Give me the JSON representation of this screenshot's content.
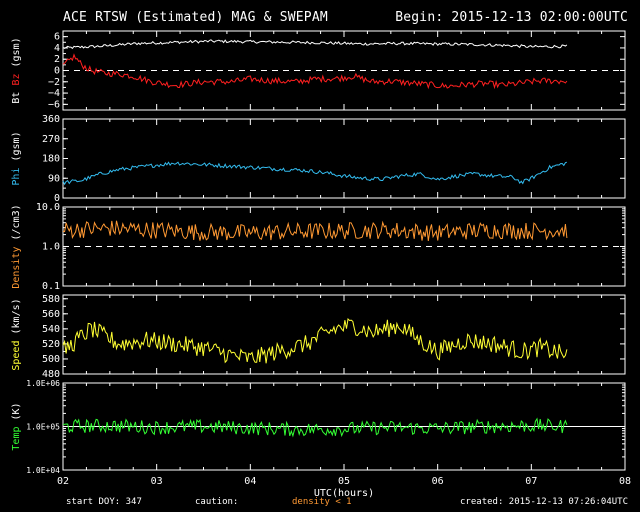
{
  "header": {
    "title": "ACE RTSW (Estimated) MAG & SWEPAM",
    "begin": "Begin: 2015-12-13 02:00:00UTC"
  },
  "footer": {
    "start_doy": "start DOY: 347",
    "caution": "caution:",
    "density_note": "density < 1",
    "created": "created: 2015-12-13 07:26:04UTC"
  },
  "colors": {
    "background": "#000000",
    "axes": "#ffffff",
    "bt": "#ffffff",
    "bz": "#ff2020",
    "phi": "#33bbee",
    "density": "#ff9933",
    "speed": "#ffff33",
    "temp": "#33ff33",
    "caution_text": "#ff9933"
  },
  "chart_data": {
    "type": "line",
    "x_axis": {
      "label": "UTC(hours)",
      "range": [
        2,
        8
      ],
      "tick_labels": [
        "02",
        "03",
        "04",
        "05",
        "06",
        "07",
        "08"
      ],
      "data_end": 7.38
    },
    "panels": [
      {
        "id": "mag",
        "ylabel_parts": [
          {
            "text": "Bt",
            "color": "#ffffff"
          },
          {
            "text": " Bz",
            "color": "#ff2020"
          },
          {
            "text": " (gsm)",
            "color": "#ffffff"
          }
        ],
        "scale": "linear",
        "ylim": [
          -7,
          7
        ],
        "tick_values": [
          -6,
          -4,
          -2,
          0,
          2,
          4,
          6
        ],
        "tick_labels": [
          "−6",
          "−4",
          "−2",
          "0",
          "2",
          "4",
          "6"
        ],
        "reference_line": 0,
        "reference_style": "dashed",
        "series": [
          {
            "name": "Bt",
            "color": "#ffffff",
            "keyframes": [
              [
                2.0,
                4.0
              ],
              [
                2.4,
                4.3
              ],
              [
                2.8,
                4.8
              ],
              [
                3.2,
                5.0
              ],
              [
                3.6,
                5.2
              ],
              [
                4.0,
                5.1
              ],
              [
                4.4,
                5.0
              ],
              [
                4.8,
                4.9
              ],
              [
                5.2,
                4.7
              ],
              [
                5.6,
                4.8
              ],
              [
                6.0,
                4.7
              ],
              [
                6.4,
                4.6
              ],
              [
                6.8,
                4.4
              ],
              [
                7.0,
                4.2
              ],
              [
                7.38,
                4.3
              ]
            ],
            "noise": 0.25
          },
          {
            "name": "Bz",
            "color": "#ff2020",
            "keyframes": [
              [
                2.0,
                0.8
              ],
              [
                2.12,
                2.5
              ],
              [
                2.2,
                1.0
              ],
              [
                2.3,
                0.0
              ],
              [
                2.45,
                -0.5
              ],
              [
                2.6,
                -0.6
              ],
              [
                2.75,
                -1.0
              ],
              [
                2.95,
                -2.0
              ],
              [
                3.2,
                -2.6
              ],
              [
                3.5,
                -2.0
              ],
              [
                3.8,
                -2.0
              ],
              [
                4.0,
                -1.5
              ],
              [
                4.2,
                -1.8
              ],
              [
                4.5,
                -2.0
              ],
              [
                4.7,
                -1.5
              ],
              [
                4.95,
                -1.4
              ],
              [
                5.1,
                -1.0
              ],
              [
                5.3,
                -2.0
              ],
              [
                5.5,
                -1.9
              ],
              [
                5.7,
                -2.2
              ],
              [
                5.9,
                -2.5
              ],
              [
                6.1,
                -2.8
              ],
              [
                6.3,
                -2.5
              ],
              [
                6.5,
                -2.3
              ],
              [
                6.7,
                -2.6
              ],
              [
                6.9,
                -2.2
              ],
              [
                7.1,
                -1.8
              ],
              [
                7.38,
                -1.9
              ]
            ],
            "noise": 0.55
          }
        ]
      },
      {
        "id": "phi",
        "ylabel_parts": [
          {
            "text": "Phi",
            "color": "#33bbee"
          },
          {
            "text": " (gsm)",
            "color": "#ffffff"
          }
        ],
        "scale": "linear",
        "ylim": [
          0,
          360
        ],
        "tick_values": [
          0,
          90,
          180,
          270,
          360
        ],
        "tick_labels": [
          "0",
          "90",
          "180",
          "270",
          "360"
        ],
        "series": [
          {
            "name": "Phi",
            "color": "#33bbee",
            "keyframes": [
              [
                2.0,
                70
              ],
              [
                2.2,
                80
              ],
              [
                2.4,
                110
              ],
              [
                2.6,
                130
              ],
              [
                2.8,
                140
              ],
              [
                3.0,
                150
              ],
              [
                3.2,
                160
              ],
              [
                3.4,
                155
              ],
              [
                3.6,
                150
              ],
              [
                3.8,
                145
              ],
              [
                4.0,
                140
              ],
              [
                4.2,
                135
              ],
              [
                4.4,
                130
              ],
              [
                4.6,
                125
              ],
              [
                4.8,
                115
              ],
              [
                5.0,
                100
              ],
              [
                5.2,
                90
              ],
              [
                5.4,
                85
              ],
              [
                5.6,
                100
              ],
              [
                5.8,
                110
              ],
              [
                6.0,
                85
              ],
              [
                6.2,
                100
              ],
              [
                6.4,
                110
              ],
              [
                6.6,
                100
              ],
              [
                6.8,
                95
              ],
              [
                6.9,
                70
              ],
              [
                7.0,
                90
              ],
              [
                7.2,
                140
              ],
              [
                7.38,
                160
              ]
            ],
            "noise": 9
          }
        ]
      },
      {
        "id": "density",
        "ylabel_parts": [
          {
            "text": "Density",
            "color": "#ff9933"
          },
          {
            "text": " (/cm3)",
            "color": "#ffffff"
          }
        ],
        "scale": "log",
        "ylim": [
          0.1,
          10.0
        ],
        "tick_values": [
          0.1,
          1.0,
          10.0
        ],
        "tick_labels": [
          "0.1",
          "1.0",
          "10.0"
        ],
        "reference_line": 1.0,
        "reference_style": "dashed",
        "series": [
          {
            "name": "Density",
            "color": "#ff9933",
            "keyframes": [
              [
                2.0,
                2.6
              ],
              [
                2.5,
                2.9
              ],
              [
                3.0,
                2.6
              ],
              [
                3.5,
                2.3
              ],
              [
                4.0,
                2.2
              ],
              [
                4.5,
                2.4
              ],
              [
                5.0,
                2.5
              ],
              [
                5.5,
                2.6
              ],
              [
                6.0,
                2.2
              ],
              [
                6.5,
                2.6
              ],
              [
                7.0,
                2.5
              ],
              [
                7.38,
                2.6
              ]
            ],
            "noise_log": 0.22
          }
        ]
      },
      {
        "id": "speed",
        "ylabel_parts": [
          {
            "text": "Speed",
            "color": "#ffff33"
          },
          {
            "text": " (km/s)",
            "color": "#ffffff"
          }
        ],
        "scale": "linear",
        "ylim": [
          480,
          585
        ],
        "tick_values": [
          480,
          500,
          520,
          540,
          560,
          580
        ],
        "tick_labels": [
          "480",
          "500",
          "520",
          "540",
          "560",
          "580"
        ],
        "series": [
          {
            "name": "Speed",
            "color": "#ffff33",
            "keyframes": [
              [
                2.0,
                510
              ],
              [
                2.3,
                540
              ],
              [
                2.6,
                520
              ],
              [
                2.9,
                525
              ],
              [
                3.2,
                520
              ],
              [
                3.5,
                515
              ],
              [
                3.8,
                505
              ],
              [
                4.0,
                500
              ],
              [
                4.3,
                510
              ],
              [
                4.6,
                520
              ],
              [
                4.9,
                540
              ],
              [
                5.1,
                545
              ],
              [
                5.3,
                535
              ],
              [
                5.6,
                545
              ],
              [
                5.8,
                525
              ],
              [
                6.0,
                510
              ],
              [
                6.3,
                525
              ],
              [
                6.6,
                520
              ],
              [
                6.9,
                510
              ],
              [
                7.1,
                515
              ],
              [
                7.38,
                505
              ]
            ],
            "noise": 12
          }
        ]
      },
      {
        "id": "temp",
        "ylabel_parts": [
          {
            "text": "Temp",
            "color": "#33ff33"
          },
          {
            "text": " (K)",
            "color": "#ffffff"
          }
        ],
        "scale": "log",
        "ylim": [
          10000,
          1000000
        ],
        "tick_values": [
          10000,
          100000,
          1000000
        ],
        "tick_labels": [
          "1.0E+04",
          "1.0E+05",
          "1.0E+06"
        ],
        "reference_line": 100000,
        "reference_style": "solid",
        "series": [
          {
            "name": "Temp",
            "color": "#33ff33",
            "keyframes": [
              [
                2.0,
                100000
              ],
              [
                2.5,
                105000
              ],
              [
                3.0,
                95000
              ],
              [
                3.5,
                100000
              ],
              [
                4.0,
                92000
              ],
              [
                4.5,
                85000
              ],
              [
                5.0,
                88000
              ],
              [
                5.5,
                95000
              ],
              [
                6.0,
                90000
              ],
              [
                6.5,
                100000
              ],
              [
                7.0,
                105000
              ],
              [
                7.38,
                100000
              ]
            ],
            "noise_log": 0.16
          }
        ]
      }
    ]
  }
}
